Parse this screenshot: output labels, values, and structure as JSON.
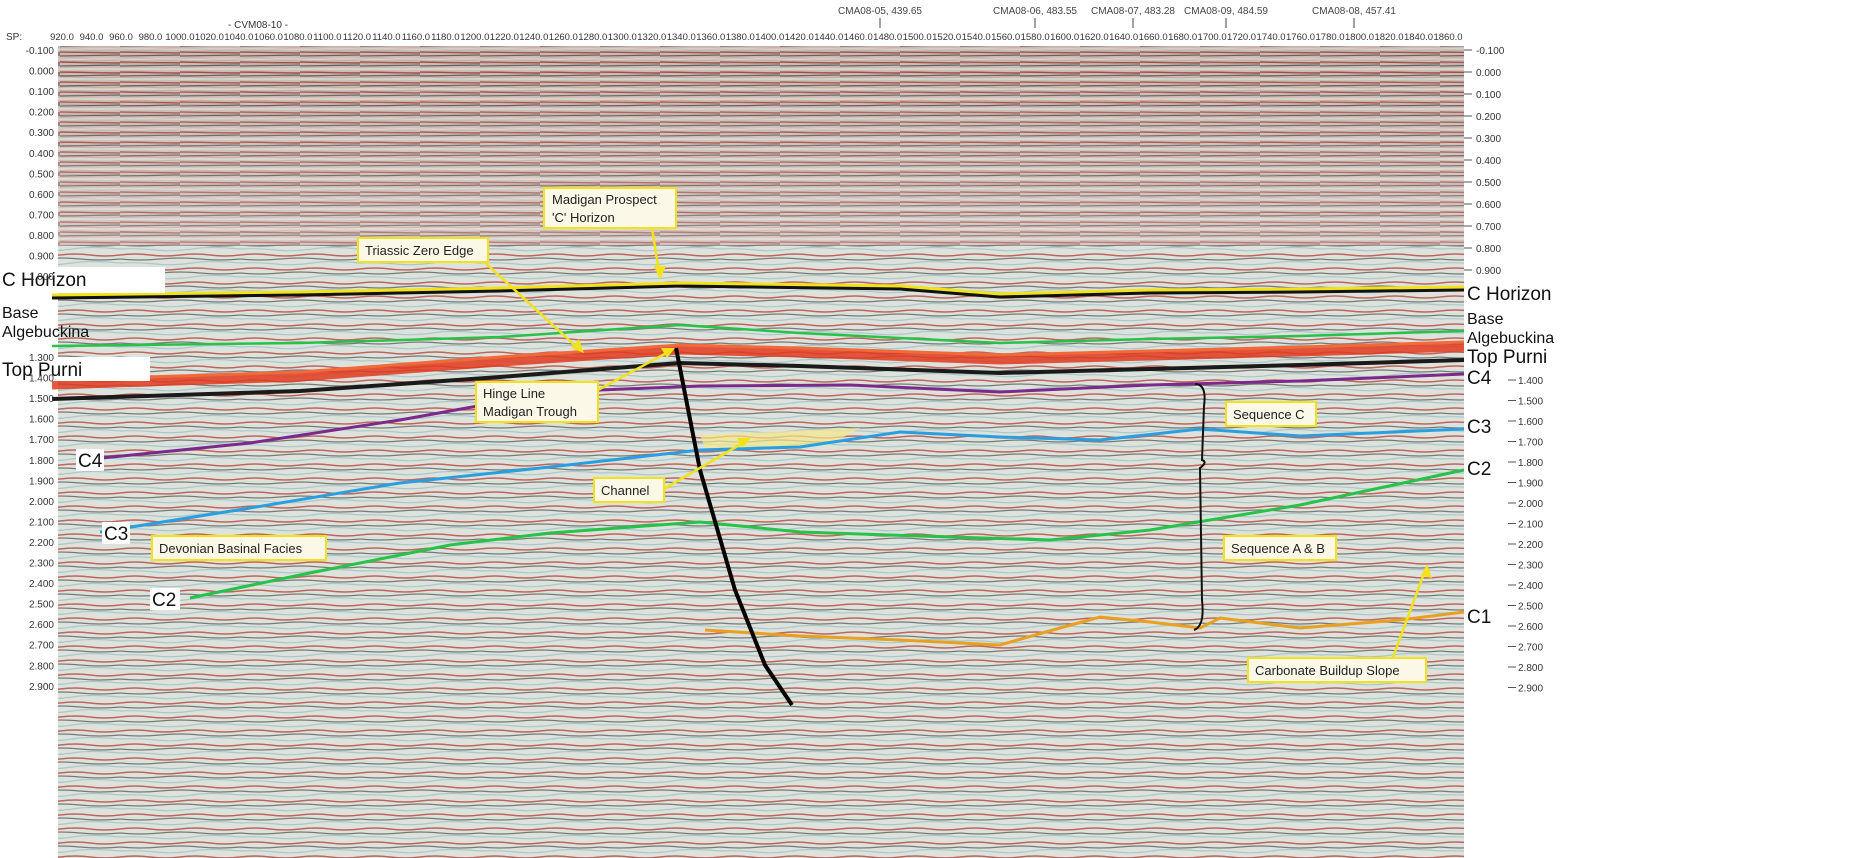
{
  "header": {
    "sp_label": "SP:",
    "line_label": "- CVM08-10 -",
    "shotpoint_labels": [
      "920.0",
      "940.0",
      "960.0",
      "980.0",
      "1000.0",
      "1020.0",
      "1040.0",
      "1060.0",
      "1080.0",
      "1100.0",
      "1120.0",
      "1140.0",
      "1160.0",
      "1180.0",
      "1200.0",
      "1220.0",
      "1240.0",
      "1260.0",
      "1280.0",
      "1300.0",
      "1320.0",
      "1340.0",
      "1360.0",
      "1380.0",
      "1400.0",
      "1420.0",
      "1440.0",
      "1460.0",
      "1480.0",
      "1500.0",
      "1520.0",
      "1540.0",
      "1560.0",
      "1580.0",
      "1600.0",
      "1620.0",
      "1640.0",
      "1660.0",
      "1680.0",
      "1700.0",
      "1720.0",
      "1740.0",
      "1760.0",
      "1780.0",
      "1800.0",
      "1820.0",
      "1840.0",
      "1860.0"
    ],
    "wells": [
      "CMA08-05, 439.65",
      "CMA08-06, 483.55",
      "CMA08-07, 483.28",
      "CMA08-09, 484.59",
      "CMA08-08, 457.41"
    ]
  },
  "left_time_labels": [
    "-0.100",
    "0.000",
    "0.100",
    "0.200",
    "0.300",
    "0.400",
    "0.500",
    "0.600",
    "0.700",
    "0.800",
    "0.900",
    "1.000",
    "1.300",
    "1.400",
    "1.500",
    "1.600",
    "1.700",
    "1.800",
    "1.900",
    "2.000",
    "2.100",
    "2.200",
    "2.300",
    "2.400",
    "2.500",
    "2.600",
    "2.700",
    "2.800",
    "2.900"
  ],
  "right_time_labels_top": [
    "-0.100",
    "0.000",
    "0.100",
    "0.200",
    "0.300",
    "0.400",
    "0.500",
    "0.600",
    "0.700",
    "0.800",
    "0.900"
  ],
  "right_time_labels_bottom": [
    "1.400",
    "1.500",
    "1.600",
    "1.700",
    "1.800",
    "1.900",
    "2.000",
    "2.100",
    "2.200",
    "2.300",
    "2.400",
    "2.500",
    "2.600",
    "2.700",
    "2.800",
    "2.900"
  ],
  "horizons": {
    "c_horizon": {
      "left": "C Horizon",
      "right": "C Horizon",
      "color": "#f2e21c"
    },
    "base_algebuckina": {
      "left_line1": "Base",
      "left_line2": "Algebuckina",
      "right_line1": "Base",
      "right_line2": "Algebuckina",
      "color": "#27c24a"
    },
    "top_purni": {
      "left": "Top Purni",
      "right": "Top Purni",
      "color": "#f26a3a"
    },
    "c4": {
      "left": "C4",
      "right": "C4",
      "color": "#7b2a8c"
    },
    "c3": {
      "left": "C3",
      "right": "C3",
      "color": "#2a9fe0"
    },
    "c2": {
      "left": "C2",
      "right": "C2",
      "color": "#27c24a"
    },
    "c1": {
      "right": "C1",
      "color": "#e8a020"
    }
  },
  "annotations": {
    "madigan_prospect_line1": "Madigan Prospect",
    "madigan_prospect_line2": "'C' Horizon",
    "triassic_zero_edge": "Triassic Zero Edge",
    "hinge_line_line1": "Hinge Line",
    "hinge_line_line2": "Madigan Trough",
    "channel": "Channel",
    "devonian_basinal_facies": "Devonian Basinal Facies",
    "sequence_c": "Sequence C",
    "sequence_ab": "Sequence A & B",
    "carbonate_buildup_slope": "Carbonate Buildup Slope"
  },
  "colors": {
    "annotation_box_border": "#f2e21c",
    "arrow": "#f2e21c",
    "seismic_background": "#d9dfd8",
    "seismic_red": "#b8463c",
    "seismic_black": "#1a1a1a",
    "fault": "#000000",
    "channel_fill": "#f5e88a"
  }
}
